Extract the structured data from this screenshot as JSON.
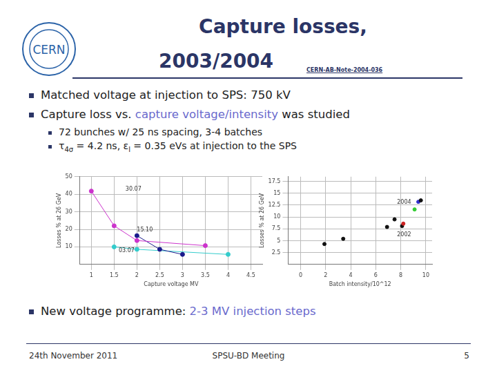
{
  "slide": {
    "logo": "CERN",
    "title": [
      "Capture losses,",
      "2003/2004"
    ],
    "reference": "CERN-AB-Note-2004-036",
    "bullets": [
      {
        "level": 1,
        "runs": [
          {
            "text": "Matched voltage at injection to SPS: 750 kV"
          }
        ]
      },
      {
        "level": 1,
        "runs": [
          {
            "text": "Capture loss vs. "
          },
          {
            "text": "capture voltage/intensity",
            "highlight": true
          },
          {
            "text": " was studied"
          }
        ]
      },
      {
        "level": 2,
        "runs": [
          {
            "text": "72 bunches w/ 25 ns spacing, 3-4 batches"
          }
        ]
      },
      {
        "level": 2,
        "runs": [
          {
            "text": "τ"
          },
          {
            "text": "4σ",
            "sub": true
          },
          {
            "text": " = 4.2 ns, ε"
          },
          {
            "text": "l",
            "sub": true
          },
          {
            "text": " = 0.35 eVs at injection to the SPS"
          }
        ]
      }
    ],
    "bullets_after": [
      {
        "level": 1,
        "runs": [
          {
            "text": "New voltage programme: "
          },
          {
            "text": "2-3 MV injection steps",
            "highlight": true
          }
        ]
      }
    ],
    "footer": {
      "left": "24th November 2011",
      "center": "SPSU-BD Meeting",
      "right": "5"
    }
  },
  "chart_data": [
    {
      "type": "line",
      "x_label": "Capture voltage MV",
      "y_label": "Losses % at 26 GeV",
      "xlim": [
        0.75,
        4.75
      ],
      "xticks": [
        1,
        1.5,
        2,
        2.5,
        3,
        3.5,
        4,
        4.5
      ],
      "ylim": [
        0,
        50
      ],
      "yticks": [
        10,
        20,
        30,
        40,
        50
      ],
      "grid": true,
      "series": [
        {
          "color": "#cc33cc",
          "marker": "circle",
          "x": [
            1,
            1.5,
            2,
            3.5
          ],
          "values": [
            41.8,
            22,
            13.6,
            10.7
          ]
        },
        {
          "color": "#1a1a8c",
          "marker": "circle",
          "x": [
            2,
            2.5,
            3
          ],
          "values": [
            16.4,
            8.6,
            5.7
          ]
        },
        {
          "color": "#33cccc",
          "marker": "circle",
          "x": [
            1.5,
            2,
            4
          ],
          "values": [
            10,
            8.6,
            5.7
          ]
        }
      ],
      "annotations": [
        {
          "text": "30.07",
          "x": 1.75,
          "y": 43
        },
        {
          "text": "15.10",
          "x": 2,
          "y": 19.5
        },
        {
          "text": "03.07",
          "x": 1.6,
          "y": 8
        }
      ]
    },
    {
      "type": "scatter",
      "x_label": "Batch intensity/10^12",
      "y_label": "Losses % at 26 GeV",
      "xlim": [
        -1,
        10.5
      ],
      "xticks": [
        0,
        2,
        4,
        6,
        8,
        10
      ],
      "ylim": [
        0,
        18.5
      ],
      "yticks": [
        2.5,
        5,
        7.5,
        10,
        12.5,
        15,
        17.5
      ],
      "grid": true,
      "marker": "circle",
      "x": [
        1.9,
        3.4,
        6.9,
        7.5,
        8.1,
        8.2,
        9.1,
        9.4,
        9.6
      ],
      "values": [
        4.3,
        5.4,
        7.9,
        9.5,
        8.1,
        8.6,
        11.6,
        13.2,
        13.5
      ],
      "colors": [
        "#111111",
        "#111111",
        "#111111",
        "#111111",
        "#111111",
        "#cc2222",
        "#33cc33",
        "#3333cc",
        "#111111"
      ],
      "annotations": [
        {
          "text": "2004",
          "x": 7.7,
          "y": 13.1
        },
        {
          "text": "2002",
          "x": 7.7,
          "y": 6.3
        }
      ]
    }
  ]
}
